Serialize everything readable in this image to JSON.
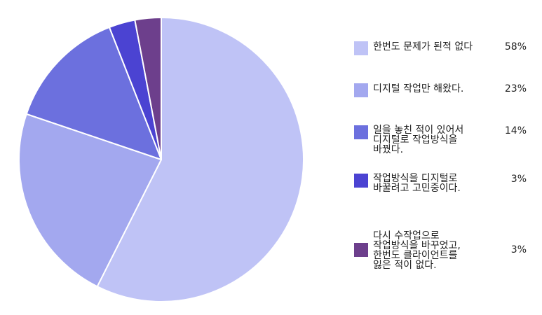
{
  "chart_data": {
    "type": "pie",
    "series": [
      {
        "label": "한번도 문제가 된적 없다",
        "value": 58,
        "value_label": "58%",
        "color": "#bfc3f6"
      },
      {
        "label": "디지털 작업만 해왔다.",
        "value": 23,
        "value_label": "23%",
        "color": "#a3a8ef"
      },
      {
        "label": "일을 놓친 적이 있어서\n디지털로 작업방식을\n바꿨다.",
        "value": 14,
        "value_label": "14%",
        "color": "#6c70de"
      },
      {
        "label": "작업방식을 디지털로\n바꿀려고 고민중이다.",
        "value": 3,
        "value_label": "3%",
        "color": "#4b43d2"
      },
      {
        "label": "다시 수작업으로\n작업방식을 바꾸었고,\n한번도 클라이언트를\n잃은 적이 없다.",
        "value": 3,
        "value_label": "3%",
        "color": "#6d3f8c"
      }
    ],
    "legend_position": "right"
  }
}
